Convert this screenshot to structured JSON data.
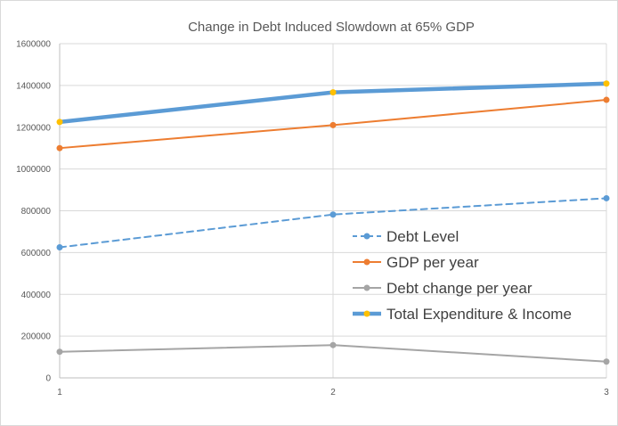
{
  "chart_data": {
    "type": "line",
    "title": "Change in Debt Induced Slowdown at 65% GDP",
    "xlabel": "",
    "ylabel": "",
    "x": [
      1,
      2,
      3
    ],
    "x_tick_labels": [
      "1",
      "2",
      "3"
    ],
    "ylim": [
      0,
      1600000
    ],
    "y_tick_labels": [
      "0",
      "200000",
      "400000",
      "600000",
      "800000",
      "1000000",
      "1200000",
      "1400000",
      "1600000"
    ],
    "grid": true,
    "legend_position": "center-right",
    "series": [
      {
        "name": "Debt Level",
        "values": [
          625000,
          782000,
          860000
        ],
        "color": "#5b9bd5",
        "dashed": true,
        "bold": false,
        "marker_color": "#5b9bd5"
      },
      {
        "name": "GDP per year",
        "values": [
          1100000,
          1210000,
          1331000
        ],
        "color": "#ed7d31",
        "dashed": false,
        "bold": false,
        "marker_color": "#ed7d31"
      },
      {
        "name": "Debt change per year",
        "values": [
          125000,
          157000,
          78000
        ],
        "color": "#a5a5a5",
        "dashed": false,
        "bold": false,
        "marker_color": "#a5a5a5"
      },
      {
        "name": "Total Expenditure & Income",
        "values": [
          1225000,
          1367000,
          1409000
        ],
        "color": "#5b9bd5",
        "dashed": false,
        "bold": true,
        "marker_color": "#ffc000"
      }
    ]
  }
}
